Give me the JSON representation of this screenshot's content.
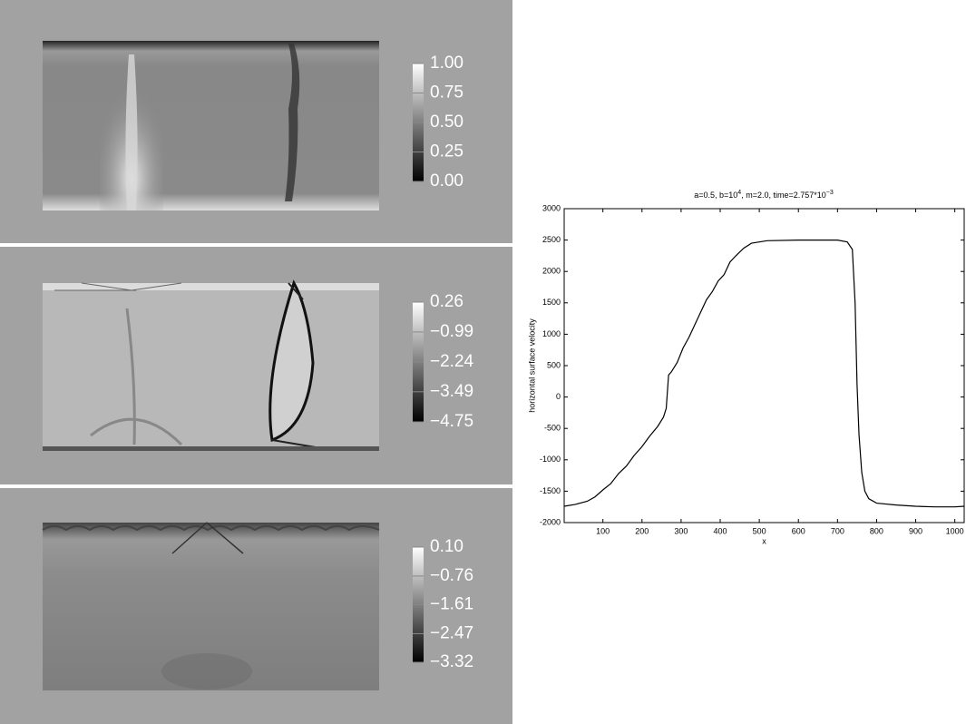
{
  "chart_data": [
    {
      "type": "colorbar",
      "ylim": [
        0,
        1
      ],
      "yticks": [
        {
          "value": 0,
          "label": "0.00"
        },
        {
          "value": 0.25,
          "label": "0.25"
        },
        {
          "value": 0.5,
          "label": "0.50"
        },
        {
          "value": 0.75,
          "label": "0.75"
        },
        {
          "value": 1,
          "label": "1.00"
        }
      ]
    },
    {
      "type": "colorbar",
      "ylim": [
        -4.75,
        0.26
      ],
      "yticks": [
        {
          "value": -4.75,
          "label": "−4.75"
        },
        {
          "value": -3.49,
          "label": "−3.49"
        },
        {
          "value": -2.24,
          "label": "−2.24"
        },
        {
          "value": -0.99,
          "label": "−0.99"
        },
        {
          "value": 0.26,
          "label": "0.26"
        }
      ]
    },
    {
      "type": "colorbar",
      "ylim": [
        -3.32,
        0.1
      ],
      "yticks": [
        {
          "value": -3.32,
          "label": "−3.32"
        },
        {
          "value": -2.47,
          "label": "−2.47"
        },
        {
          "value": -1.61,
          "label": "−1.61"
        },
        {
          "value": -0.76,
          "label": "−0.76"
        },
        {
          "value": 0.1,
          "label": "0.10"
        }
      ]
    },
    {
      "type": "line",
      "title": [
        "a=0.5, b=10",
        "4",
        ", m=2.0, time=2.757*10",
        "−3"
      ],
      "xlabel": "x",
      "ylabel": "horizontal surface velocity",
      "xlim": [
        1,
        1024
      ],
      "ylim": [
        -2000,
        3000
      ],
      "xticks": [
        100,
        200,
        300,
        400,
        500,
        600,
        700,
        800,
        900,
        1000
      ],
      "yticks": [
        -2000,
        -1500,
        -1000,
        -500,
        0,
        500,
        1000,
        1500,
        2000,
        2500,
        3000
      ],
      "color": "#000000",
      "x": [
        1,
        30,
        60,
        80,
        100,
        120,
        140,
        160,
        180,
        200,
        220,
        240,
        255,
        262,
        268,
        275,
        290,
        305,
        320,
        335,
        350,
        365,
        380,
        395,
        410,
        425,
        440,
        460,
        480,
        520,
        600,
        700,
        725,
        738,
        745,
        750,
        755,
        762,
        770,
        780,
        800,
        850,
        900,
        950,
        1000,
        1024
      ],
      "values": [
        -1740,
        -1710,
        -1660,
        -1590,
        -1480,
        -1380,
        -1220,
        -1100,
        -930,
        -790,
        -620,
        -470,
        -320,
        -180,
        350,
        400,
        550,
        780,
        950,
        1150,
        1350,
        1550,
        1680,
        1850,
        1950,
        2150,
        2250,
        2370,
        2450,
        2490,
        2500,
        2500,
        2470,
        2350,
        1500,
        200,
        -600,
        -1200,
        -1500,
        -1620,
        -1690,
        -1720,
        -1740,
        -1750,
        -1750,
        -1740
      ]
    }
  ]
}
